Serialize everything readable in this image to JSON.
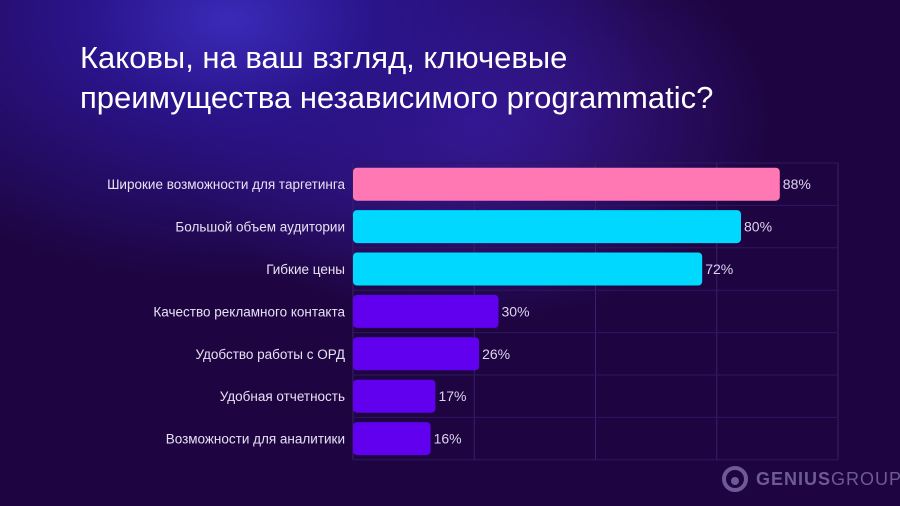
{
  "title_line1": "Каковы, на ваш взгляд, ключевые",
  "title_line2": "преимущества независимого programmatic?",
  "logo": {
    "bold": "GENIUS",
    "light": "GROUP"
  },
  "chart_data": {
    "type": "bar",
    "orientation": "horizontal",
    "title": "Каковы, на ваш взгляд, ключевые преимущества независимого programmatic?",
    "categories": [
      "Широкие возможности для таргетинга",
      "Большой объем аудитории",
      "Гибкие цены",
      "Качество рекламного контакта",
      "Удобство работы с ОРД",
      "Удобная отчетность",
      "Возможности для аналитики"
    ],
    "values": [
      88,
      80,
      72,
      30,
      26,
      17,
      16
    ],
    "labels": [
      "88%",
      "80%",
      "72%",
      "30%",
      "26%",
      "17%",
      "16%"
    ],
    "colors": [
      "#ff78b4",
      "#00d8ff",
      "#00d8ff",
      "#6000ee",
      "#6000ee",
      "#6000ee",
      "#6000ee"
    ],
    "xlim": [
      0,
      100
    ],
    "grid_step": 25,
    "grid": true,
    "xlabel": "",
    "ylabel": ""
  }
}
